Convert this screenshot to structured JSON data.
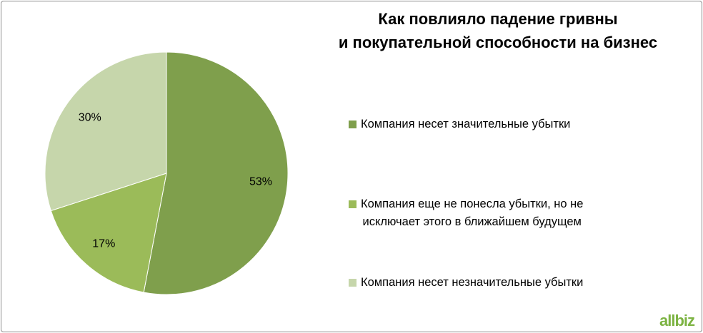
{
  "chart_data": {
    "type": "pie",
    "title": "Как повлияло падение гривны\nи покупательной способности на бизнес",
    "categories": [
      "Компания несет значительные убытки",
      "Компания еще не понесла убытки, но не\nисключает этого в ближайшем будущем",
      "Компания несет незначительные убытки"
    ],
    "values": [
      53,
      17,
      30
    ],
    "value_labels": [
      "53%",
      "17%",
      "30%"
    ],
    "colors": [
      "#7f9f4c",
      "#9bbb59",
      "#c6d6ab"
    ],
    "legend": "right"
  },
  "logo": "allbiz"
}
